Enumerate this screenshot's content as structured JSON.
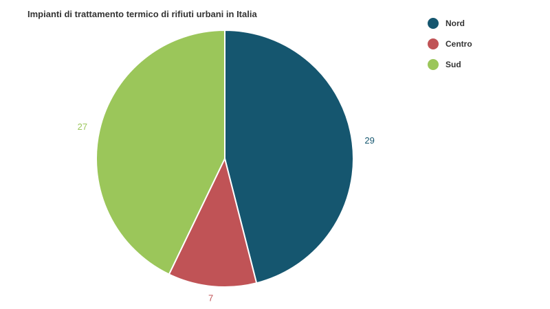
{
  "chart_data": {
    "type": "pie",
    "title": "Impianti di trattamento termico di rifiuti urbani in Italia",
    "categories": [
      "Nord",
      "Centro",
      "Sud"
    ],
    "values": [
      29,
      7,
      27
    ],
    "colors": [
      "#15566f",
      "#c05356",
      "#9bc65a"
    ],
    "legend_position": "top-right",
    "data_labels": true
  }
}
